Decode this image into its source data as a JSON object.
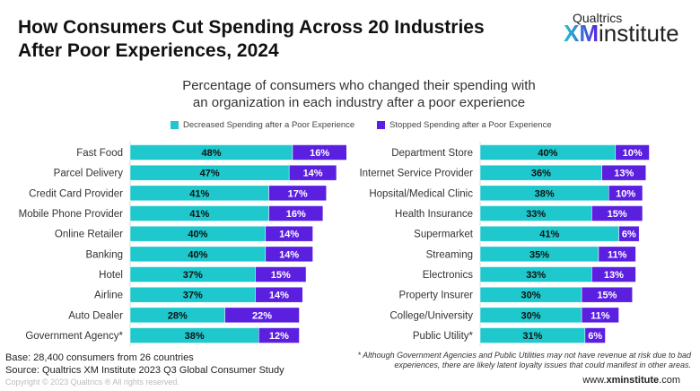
{
  "header": {
    "title_line1": "How Consumers Cut Spending Across 20 Industries",
    "title_line2": "After Poor Experiences, 2024",
    "logo_top": "Qualtrics",
    "logo_xm": "XM",
    "logo_institute": "institute"
  },
  "chart_data": {
    "type": "bar",
    "orientation": "horizontal",
    "stacked": true,
    "subtitle_line1": "Percentage of consumers who changed their spending with",
    "subtitle_line2": "an organization in each industry after a poor experience",
    "series_names": [
      "Decreased Spending after a Poor Experience",
      "Stopped Spending after a Poor Experience"
    ],
    "colors": [
      "#1ec8cc",
      "#5b1fe0"
    ],
    "legend_placement": "top",
    "panels": [
      {
        "categories": [
          "Fast Food",
          "Parcel Delivery",
          "Credit Card Provider",
          "Mobile Phone Provider",
          "Online Retailer",
          "Banking",
          "Hotel",
          "Airline",
          "Auto Dealer",
          "Government Agency*"
        ],
        "decreased": [
          48,
          47,
          41,
          41,
          40,
          40,
          37,
          37,
          28,
          38
        ],
        "stopped": [
          16,
          14,
          17,
          16,
          14,
          14,
          15,
          14,
          22,
          12
        ]
      },
      {
        "categories": [
          "Department Store",
          "Internet Service Provider",
          "Hopsital/Medical Clinic",
          "Health Insurance",
          "Supermarket",
          "Streaming",
          "Electronics",
          "Property Insurer",
          "College/University",
          "Public Utility*"
        ],
        "decreased": [
          40,
          36,
          38,
          33,
          41,
          35,
          33,
          30,
          30,
          31
        ],
        "stopped": [
          10,
          13,
          10,
          15,
          6,
          11,
          13,
          15,
          11,
          6
        ]
      }
    ]
  },
  "footer": {
    "base": "Base: 28,400 consumers from 26 countries",
    "source": "Source: Qualtrics XM Institute 2023 Q3 Global Consumer Study",
    "copyright": "Copyright © 2023 Qualtrics ® All rights reserved.",
    "note_line1": "* Although Government Agencies and Public Utilities may not have revenue at risk due to bad",
    "note_line2": "experiences, there are likely latent loyalty issues that could manifest in other areas.",
    "url_pre": "www.",
    "url_bold": "xminstitute",
    "url_post": ".com"
  }
}
